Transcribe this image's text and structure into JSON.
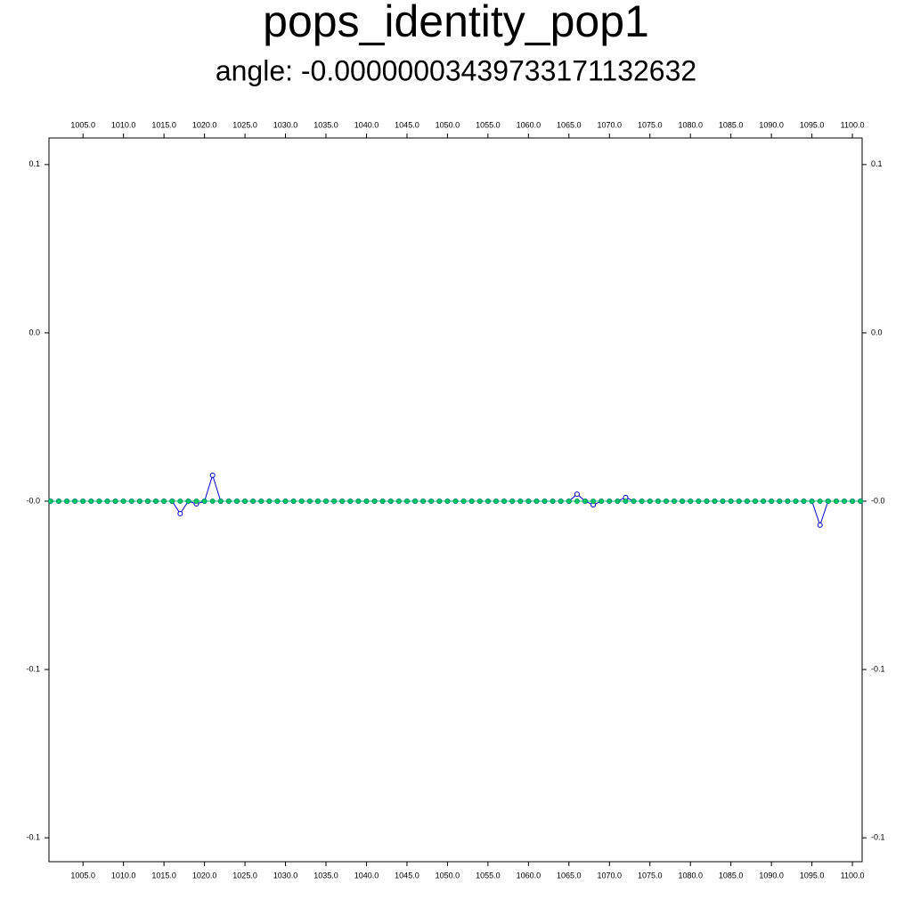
{
  "chart_data": {
    "type": "line",
    "title": "pops_identity_pop1",
    "subtitle": "angle: -0.000000034397331711326​32",
    "x": [
      1001,
      1002,
      1003,
      1004,
      1005,
      1006,
      1007,
      1008,
      1009,
      1010,
      1011,
      1012,
      1013,
      1014,
      1015,
      1016,
      1017,
      1018,
      1019,
      1020,
      1021,
      1022,
      1023,
      1024,
      1025,
      1026,
      1027,
      1028,
      1029,
      1030,
      1031,
      1032,
      1033,
      1034,
      1035,
      1036,
      1037,
      1038,
      1039,
      1040,
      1041,
      1042,
      1043,
      1044,
      1045,
      1046,
      1047,
      1048,
      1049,
      1050,
      1051,
      1052,
      1053,
      1054,
      1055,
      1056,
      1057,
      1058,
      1059,
      1060,
      1061,
      1062,
      1063,
      1064,
      1065,
      1066,
      1067,
      1068,
      1069,
      1070,
      1071,
      1072,
      1073,
      1074,
      1075,
      1076,
      1077,
      1078,
      1079,
      1080,
      1081,
      1082,
      1083,
      1084,
      1085,
      1086,
      1087,
      1088,
      1089,
      1090,
      1091,
      1092,
      1093,
      1094,
      1095,
      1096,
      1097,
      1098,
      1099,
      1100,
      1101
    ],
    "series": [
      {
        "color": "#0000cc",
        "values": [
          0,
          0,
          0,
          0,
          0,
          0,
          0,
          0,
          0,
          0,
          0,
          0,
          0,
          0,
          0,
          0,
          -0.0037,
          0,
          -0.0008,
          0,
          0.0077,
          0,
          0,
          0,
          0,
          0,
          0,
          0,
          0,
          0,
          0,
          0,
          0,
          0,
          0,
          0,
          0,
          0,
          0,
          0,
          0,
          0,
          0,
          0,
          0,
          0,
          0,
          0,
          0,
          0,
          0,
          0,
          0,
          0,
          0,
          0,
          0,
          0,
          0,
          0,
          0,
          0,
          0,
          0,
          0,
          0.0021,
          0,
          -0.0011,
          0,
          0,
          0,
          0.0011,
          0,
          0,
          0,
          0,
          0,
          0,
          0,
          0,
          0,
          0,
          0,
          0,
          0,
          0,
          0,
          0,
          0,
          0,
          0,
          0,
          0,
          0,
          0,
          -0.0071,
          0,
          0,
          0,
          0,
          0
        ]
      },
      {
        "color": "#00cc66",
        "values": [
          0,
          0,
          0,
          0,
          0,
          0,
          0,
          0,
          0,
          0,
          0,
          0,
          0,
          0,
          0,
          0,
          0,
          0,
          0,
          0,
          0,
          0,
          0,
          0,
          0,
          0,
          0,
          0,
          0,
          0,
          0,
          0,
          0,
          0,
          0,
          0,
          0,
          0,
          0,
          0,
          0,
          0,
          0,
          0,
          0,
          0,
          0,
          0,
          0,
          0,
          0,
          0,
          0,
          0,
          0,
          0,
          0,
          0,
          0,
          0,
          0,
          0,
          0,
          0,
          0,
          0,
          0,
          0,
          0,
          0,
          0,
          0,
          0,
          0,
          0,
          0,
          0,
          0,
          0,
          0,
          0,
          0,
          0,
          0,
          0,
          0,
          0,
          0,
          0,
          0,
          0,
          0,
          0,
          0,
          0,
          0,
          0,
          0,
          0,
          0,
          0
        ]
      }
    ],
    "xlim": [
      1000.8,
      1101.2
    ],
    "ylim": [
      -0.1071,
      0.1079
    ],
    "xticks": [
      {
        "value": 1005,
        "label": "1005.0"
      },
      {
        "value": 1010,
        "label": "1010.0"
      },
      {
        "value": 1015,
        "label": "1015.0"
      },
      {
        "value": 1020,
        "label": "1020.0"
      },
      {
        "value": 1025,
        "label": "1025.0"
      },
      {
        "value": 1030,
        "label": "1030.0"
      },
      {
        "value": 1035,
        "label": "1035.0"
      },
      {
        "value": 1040,
        "label": "1040.0"
      },
      {
        "value": 1045,
        "label": "1045.0"
      },
      {
        "value": 1050,
        "label": "1050.0"
      },
      {
        "value": 1055,
        "label": "1055.0"
      },
      {
        "value": 1060,
        "label": "1060.0"
      },
      {
        "value": 1065,
        "label": "1065.0"
      },
      {
        "value": 1070,
        "label": "1070.0"
      },
      {
        "value": 1075,
        "label": "1075.0"
      },
      {
        "value": 1080,
        "label": "1080.0"
      },
      {
        "value": 1085,
        "label": "1085.0"
      },
      {
        "value": 1090,
        "label": "1090.0"
      },
      {
        "value": 1095,
        "label": "1095.0"
      },
      {
        "value": 1100,
        "label": "1100.0"
      }
    ],
    "yticks": [
      {
        "value": 0.1,
        "label": "0.1"
      },
      {
        "value": 0.05,
        "label": "0.0"
      },
      {
        "value": 0,
        "label": "-0.0"
      },
      {
        "value": -0.05,
        "label": "-0.1"
      },
      {
        "value": -0.1,
        "label": "-0.1"
      }
    ]
  }
}
